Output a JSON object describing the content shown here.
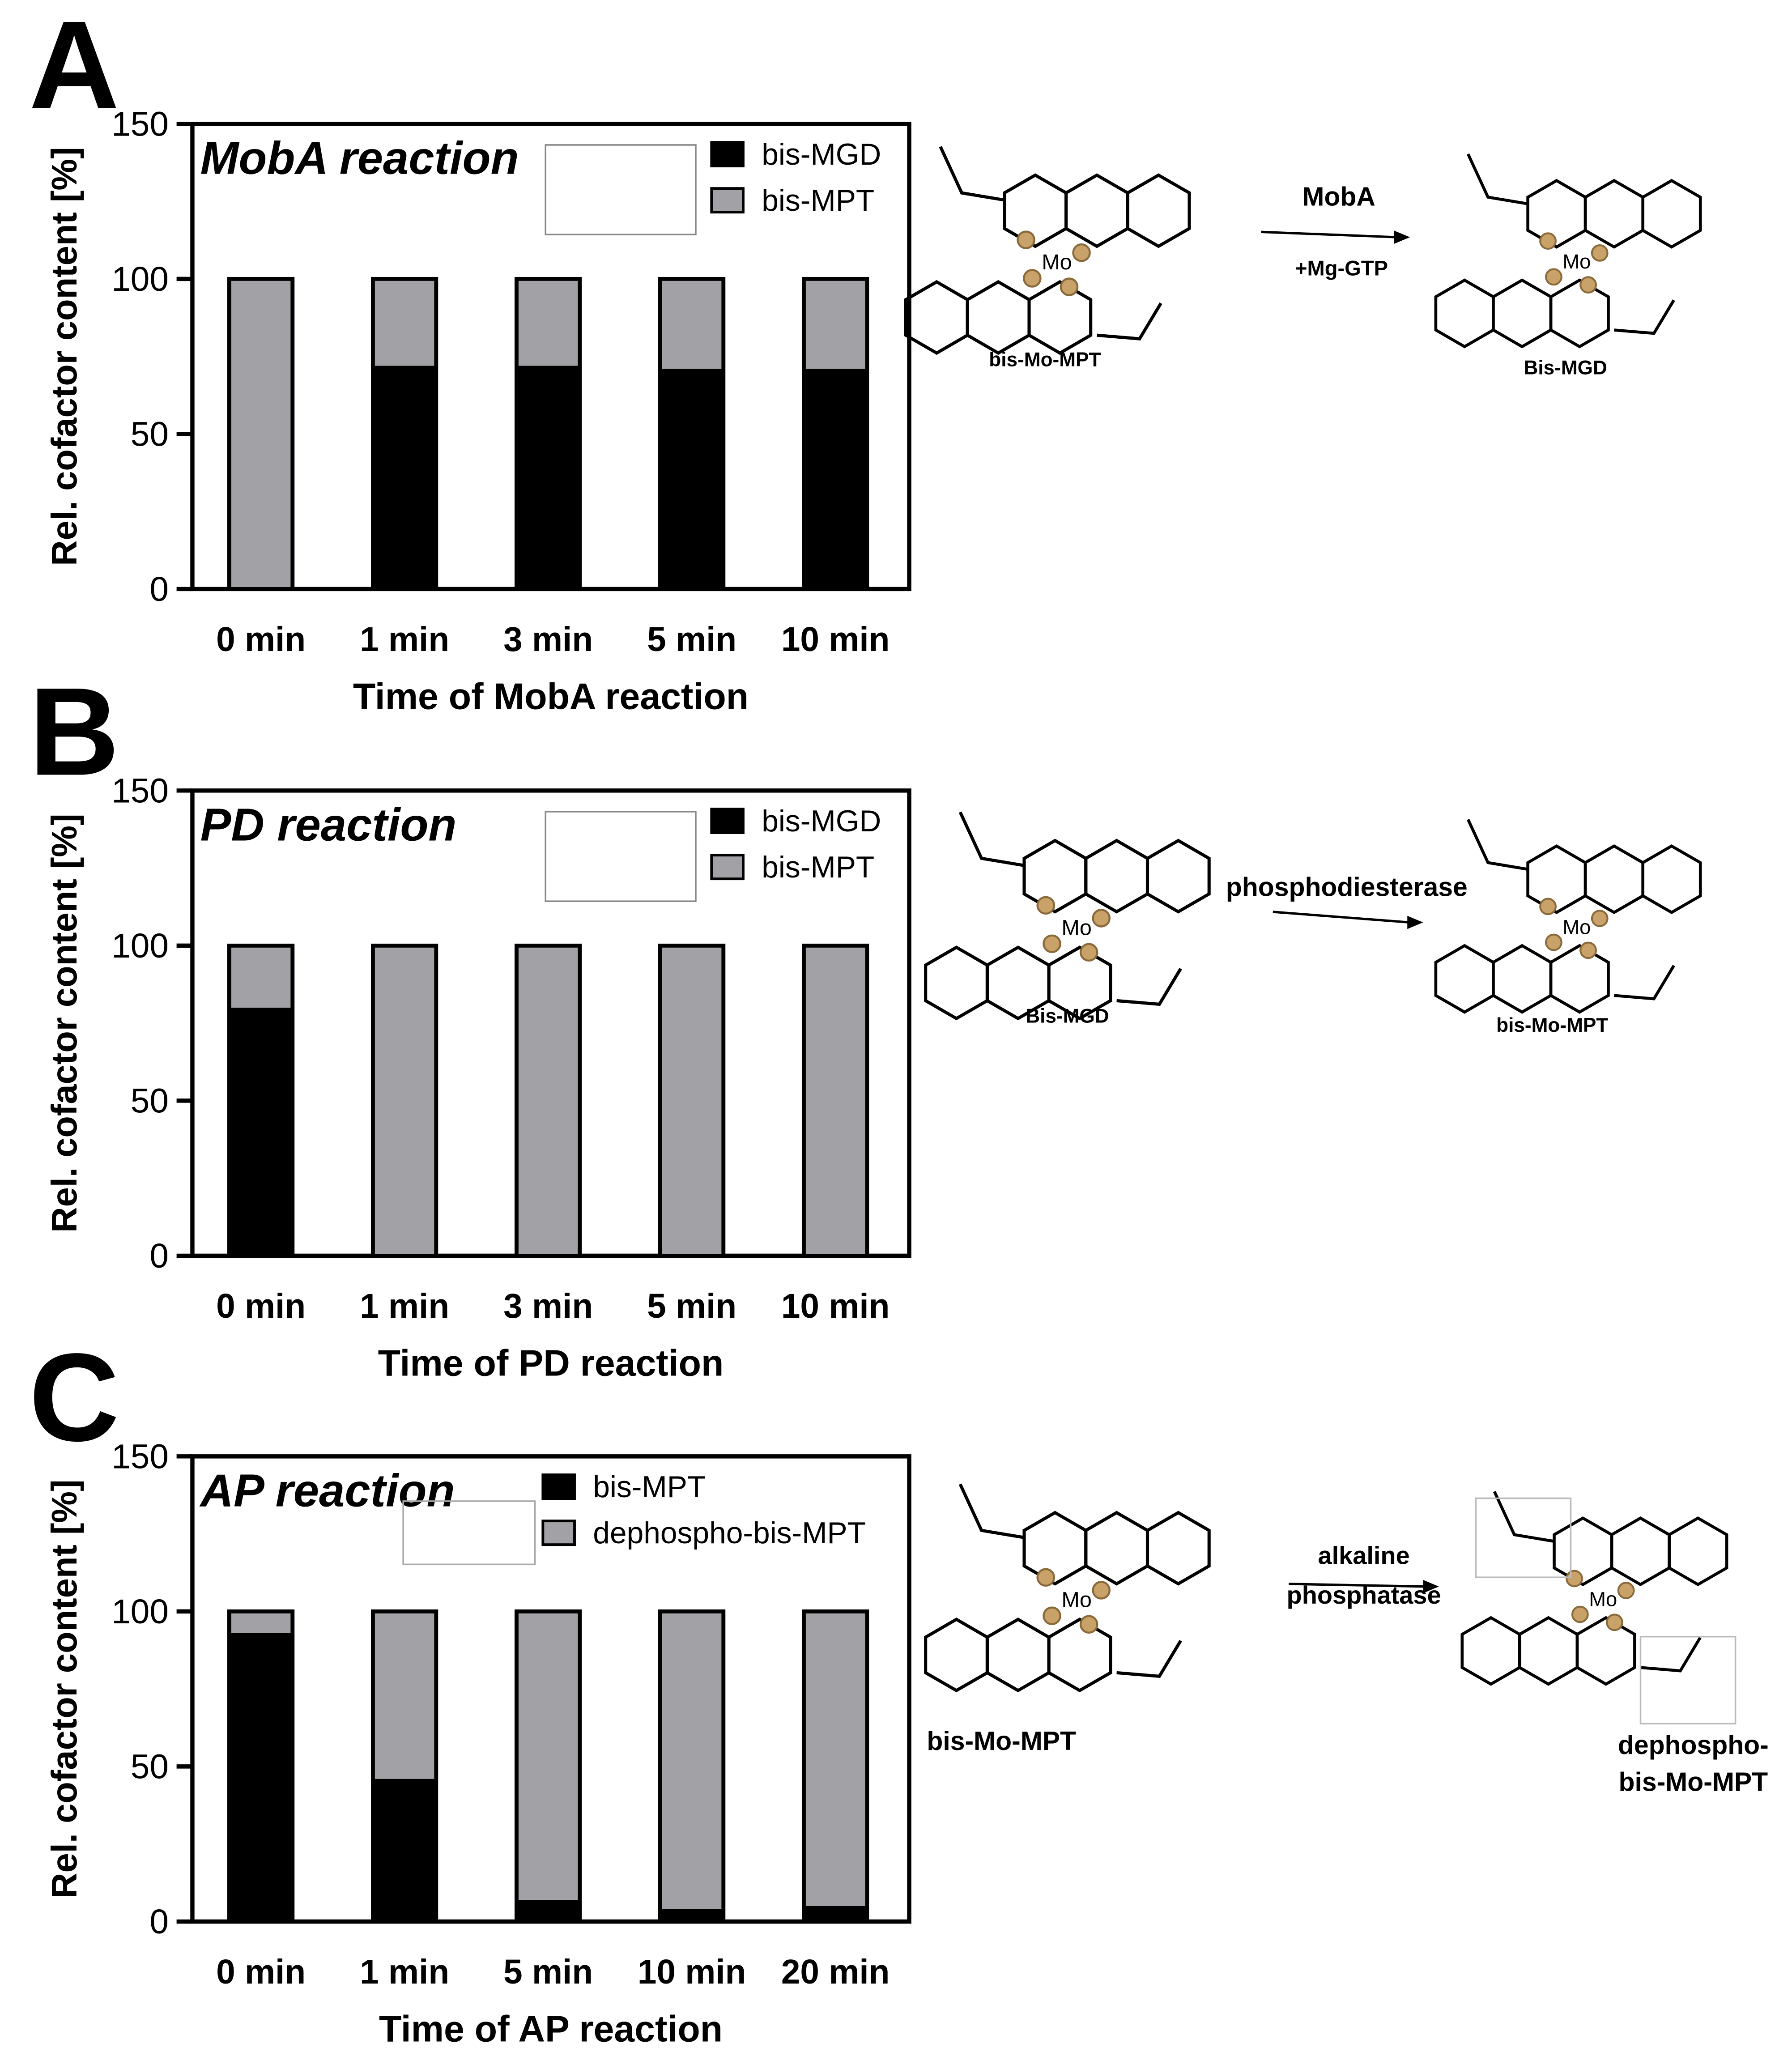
{
  "figure": {
    "colors": {
      "black_series": "#000000",
      "gray_series": "#a2a2a6",
      "ligand_gold": "#c9a26a",
      "ligand_gold_dark": "#8a6a3a"
    },
    "panels": [
      {
        "letter": "A",
        "chart_data": {
          "type": "bar",
          "stacked": true,
          "title": "MobA reaction",
          "xlabel": "Time of MobA reaction",
          "ylabel": "Rel. cofactor content [%]",
          "ylim": [
            0,
            150
          ],
          "yticks": [
            "0",
            "50",
            "100",
            "150"
          ],
          "categories": [
            "0 min",
            "1 min",
            "3 min",
            "5 min",
            "10 min"
          ],
          "series": [
            {
              "name": "bis-MGD",
              "color": "#000000",
              "values": [
                0,
                72,
                72,
                71,
                71
              ]
            },
            {
              "name": "bis-MPT",
              "color": "#a2a2a6",
              "values": [
                100,
                28,
                28,
                29,
                29
              ]
            }
          ],
          "legend": "top-right"
        },
        "scheme": {
          "substrate": "bis-Mo-MPT",
          "product": "Bis-MGD",
          "enzyme": "MobA",
          "cofactor": "+Mg-GTP"
        }
      },
      {
        "letter": "B",
        "chart_data": {
          "type": "bar",
          "stacked": true,
          "title": "PD reaction",
          "xlabel": "Time of PD reaction",
          "ylabel": "Rel. cofactor content [%]",
          "ylim": [
            0,
            150
          ],
          "yticks": [
            "0",
            "50",
            "100",
            "150"
          ],
          "categories": [
            "0 min",
            "1 min",
            "3 min",
            "5 min",
            "10 min"
          ],
          "series": [
            {
              "name": "bis-MGD",
              "color": "#000000",
              "values": [
                80,
                0,
                0,
                0,
                0
              ]
            },
            {
              "name": "bis-MPT",
              "color": "#a2a2a6",
              "values": [
                20,
                100,
                100,
                100,
                100
              ]
            }
          ],
          "legend": "top-right"
        },
        "scheme": {
          "substrate": "Bis-MGD",
          "product": "bis-Mo-MPT",
          "enzyme": "phosphodiesterase",
          "cofactor": ""
        }
      },
      {
        "letter": "C",
        "chart_data": {
          "type": "bar",
          "stacked": true,
          "title": "AP reaction",
          "xlabel": "Time of AP reaction",
          "ylabel": "Rel. cofactor content [%]",
          "ylim": [
            0,
            150
          ],
          "yticks": [
            "0",
            "50",
            "100",
            "150"
          ],
          "categories": [
            "0 min",
            "1 min",
            "5 min",
            "10 min",
            "20 min"
          ],
          "series": [
            {
              "name": "bis-MPT",
              "color": "#000000",
              "values": [
                93,
                46,
                7,
                4,
                5
              ]
            },
            {
              "name": "dephospho-bis-MPT",
              "color": "#a2a2a6",
              "values": [
                7,
                54,
                93,
                96,
                95
              ]
            }
          ],
          "legend": "top-right"
        },
        "scheme": {
          "substrate": "bis-Mo-MPT",
          "product": "dephospho-bis-Mo-MPT",
          "enzyme": "alkaline phosphatase",
          "cofactor": ""
        }
      }
    ]
  }
}
